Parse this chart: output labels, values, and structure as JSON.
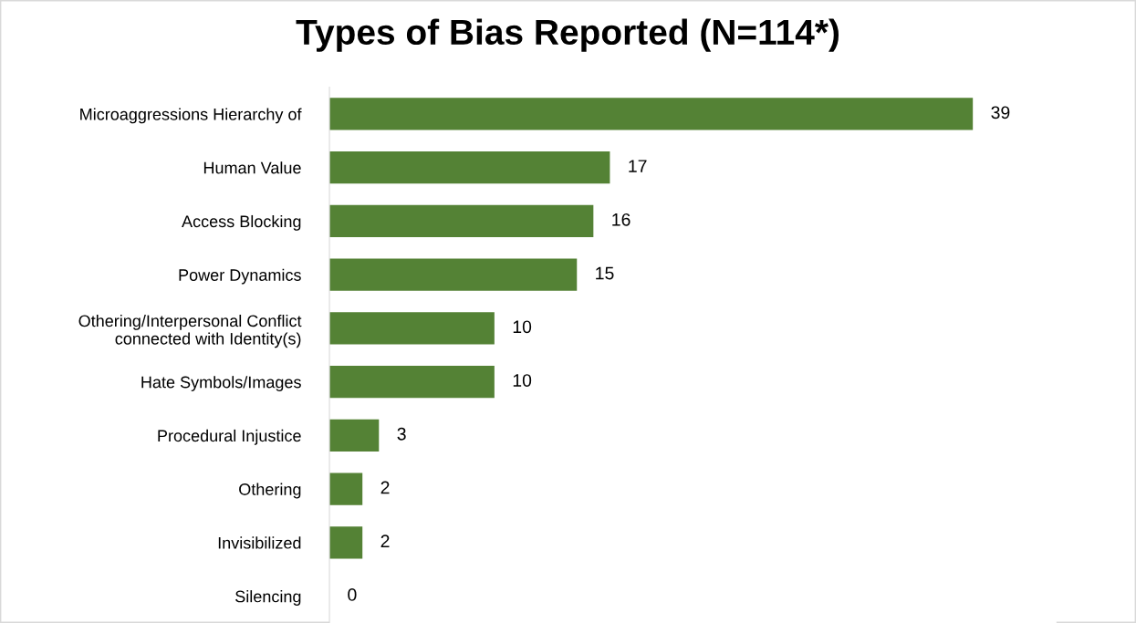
{
  "chart_data": {
    "type": "bar",
    "orientation": "horizontal",
    "title": "Types of Bias Reported (N=114*)",
    "categories": [
      "Microaggressions Hierarchy of",
      "Human Value",
      "Access Blocking",
      "Power Dynamics",
      "Othering/Interpersonal Conflict\nconnected with Identity(s)",
      "Hate Symbols/Images",
      "Procedural Injustice",
      "Othering",
      "Invisibilized",
      "Silencing"
    ],
    "values": [
      39,
      17,
      16,
      15,
      10,
      10,
      3,
      2,
      2,
      0
    ],
    "color": "#548235",
    "data_labels": true,
    "grid": false,
    "legend": false
  }
}
